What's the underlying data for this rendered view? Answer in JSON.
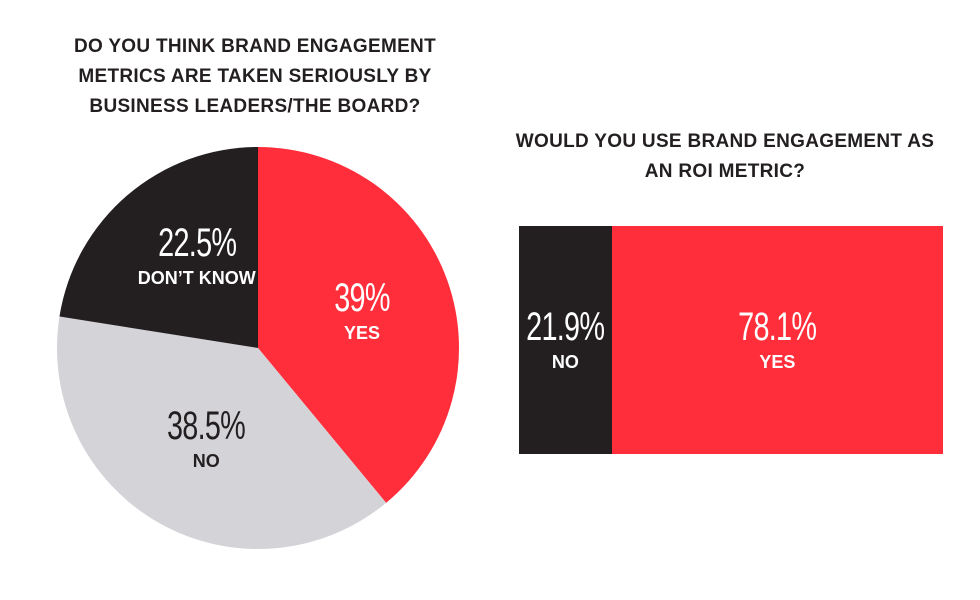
{
  "chart_data": [
    {
      "type": "pie",
      "title_lines": [
        "DO YOU THINK BRAND ENGAGEMENT",
        "METRICS ARE TAKEN SERIOUSLY BY",
        "BUSINESS LEADERS/THE BOARD?"
      ],
      "slices": [
        {
          "label": "YES",
          "value": 39,
          "display": "39%",
          "color": "#ff2e3a",
          "text_color": "#ffffff"
        },
        {
          "label": "NO",
          "value": 38.5,
          "display": "38.5%",
          "color": "#d4d3d8",
          "text_color": "#231f20"
        },
        {
          "label": "DON’T KNOW",
          "value": 22.5,
          "display": "22.5%",
          "color": "#231f20",
          "text_color": "#ffffff"
        }
      ]
    },
    {
      "type": "bar",
      "orientation": "horizontal-stacked",
      "title_lines": [
        "WOULD YOU USE BRAND ENGAGEMENT AS",
        "AN ROI METRIC?"
      ],
      "segments": [
        {
          "label": "NO",
          "value": 21.9,
          "display": "21.9%",
          "color": "#231f20"
        },
        {
          "label": "YES",
          "value": 78.1,
          "display": "78.1%",
          "color": "#ff2e3a"
        }
      ]
    }
  ]
}
